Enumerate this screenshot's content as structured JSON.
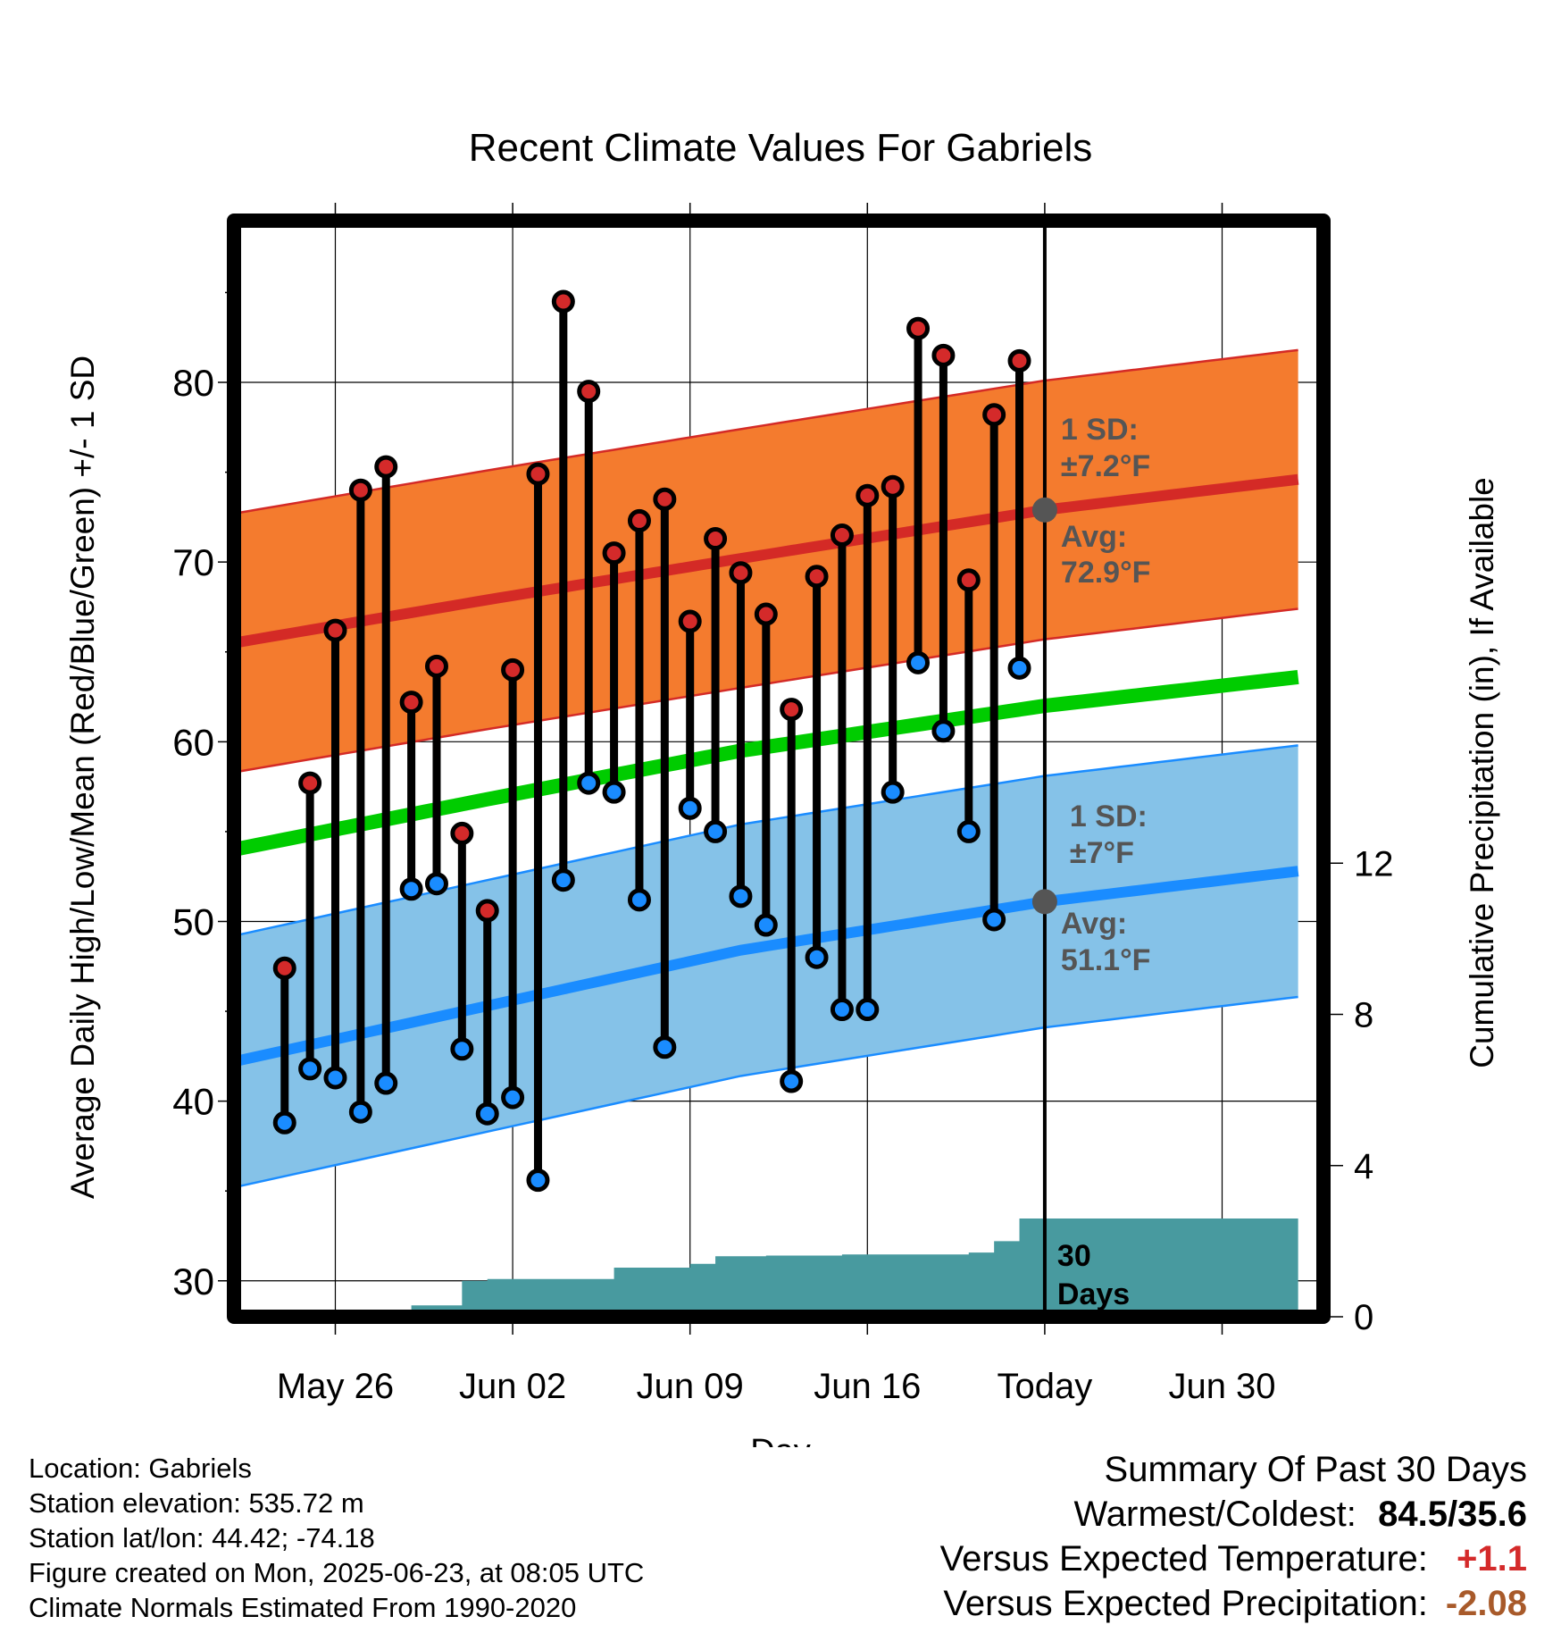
{
  "chart_data": {
    "type": "line",
    "title": "Recent Climate Values For Gabriels",
    "xlabel": "Day",
    "ylabel": "Average Daily High/Low/Mean (Red/Blue/Green) +/- 1 SD",
    "ylabel_right": "Cumulative Precipitation (in), If Available",
    "x_domain": [
      "2025-05-22",
      "2025-07-04"
    ],
    "x_tick_labels": [
      "May 26",
      "Jun 02",
      "Jun 09",
      "Jun 16",
      "Today",
      "Jun 30"
    ],
    "x_tick_dates": [
      "2025-05-26",
      "2025-06-02",
      "2025-06-09",
      "2025-06-16",
      "2025-06-23",
      "2025-06-30"
    ],
    "today": "2025-06-23",
    "ylim": [
      28,
      89
    ],
    "y_ticks": [
      30,
      40,
      50,
      60,
      70,
      80
    ],
    "ylim_right": [
      0,
      29
    ],
    "y_ticks_right": [
      0,
      4,
      8,
      12
    ],
    "grid": true,
    "daily_dates": [
      "2025-05-24",
      "2025-05-25",
      "2025-05-26",
      "2025-05-27",
      "2025-05-28",
      "2025-05-29",
      "2025-05-30",
      "2025-05-31",
      "2025-06-01",
      "2025-06-02",
      "2025-06-03",
      "2025-06-04",
      "2025-06-05",
      "2025-06-06",
      "2025-06-07",
      "2025-06-08",
      "2025-06-09",
      "2025-06-10",
      "2025-06-11",
      "2025-06-12",
      "2025-06-13",
      "2025-06-14",
      "2025-06-15",
      "2025-06-16",
      "2025-06-17",
      "2025-06-18",
      "2025-06-19",
      "2025-06-20",
      "2025-06-21",
      "2025-06-22"
    ],
    "daily_high": [
      47.4,
      57.7,
      66.2,
      74.0,
      75.3,
      62.2,
      64.2,
      54.9,
      50.6,
      64.0,
      74.9,
      84.5,
      79.5,
      70.5,
      72.3,
      73.5,
      66.7,
      71.3,
      69.4,
      67.1,
      61.8,
      69.2,
      71.5,
      73.7,
      74.2,
      83.0,
      81.5,
      69.0,
      78.2,
      81.2
    ],
    "daily_low": [
      38.8,
      41.8,
      41.3,
      39.4,
      41.0,
      51.8,
      52.1,
      42.9,
      39.3,
      40.2,
      35.6,
      52.3,
      57.7,
      57.2,
      51.2,
      43.0,
      56.3,
      55.0,
      51.4,
      49.8,
      41.1,
      48.0,
      45.1,
      45.1,
      57.2,
      64.4,
      60.6,
      55.0,
      50.1,
      64.1
    ],
    "normal_dates": [
      "2025-05-22",
      "2025-06-01",
      "2025-06-11",
      "2025-06-23",
      "2025-07-03"
    ],
    "normal_high": [
      65.5,
      67.9,
      70.2,
      72.9,
      74.6
    ],
    "normal_high_sd": 7.2,
    "normal_low": [
      42.2,
      45.3,
      48.4,
      51.1,
      52.8
    ],
    "normal_low_sd": 7,
    "normal_mean": [
      54.0,
      56.8,
      59.5,
      62.0,
      63.6
    ],
    "precip_dates": [
      "2025-05-22",
      "2025-05-27",
      "2025-05-28",
      "2025-05-29",
      "2025-05-30",
      "2025-05-31",
      "2025-06-01",
      "2025-06-03",
      "2025-06-05",
      "2025-06-06",
      "2025-06-08",
      "2025-06-09",
      "2025-06-10",
      "2025-06-12",
      "2025-06-15",
      "2025-06-19",
      "2025-06-20",
      "2025-06-21",
      "2025-06-22",
      "2025-07-03"
    ],
    "precip_cumulative": [
      0,
      0,
      0.15,
      0.3,
      0.3,
      0.95,
      1.0,
      1.0,
      1.0,
      1.3,
      1.3,
      1.4,
      1.6,
      1.62,
      1.65,
      1.65,
      1.7,
      2.0,
      2.6,
      2.6
    ],
    "annotations": {
      "high_sd_line1": "1 SD:",
      "high_sd_line2": "±7.2°F",
      "high_avg_line1": "Avg:",
      "high_avg_line2": "72.9°F",
      "low_sd_line1": "1 SD:",
      "low_sd_line2": "±7°F",
      "low_avg_line1": "Avg:",
      "low_avg_line2": "51.1°F",
      "days_line1": "30",
      "days_line2": "Days"
    },
    "colors": {
      "high_band": "#f47b2e",
      "high_line": "#d42a26",
      "low_band": "#85c2e8",
      "low_line": "#1a8cff",
      "mean_line": "#00cc00",
      "precip": "#489a9f",
      "high_dot": "#d42a2a",
      "low_dot": "#1a8cff",
      "annotation": "#555555"
    }
  },
  "info": {
    "location": "Location: Gabriels",
    "elevation": "Station elevation: 535.72 m",
    "latlon": "Station lat/lon: 44.42; -74.18",
    "created": "Figure created on Mon, 2025-06-23, at 08:05 UTC",
    "normals": "Climate Normals Estimated From 1990-2020"
  },
  "summary": {
    "title": "Summary Of Past 30 Days",
    "warm_label": "Warmest/Coldest:",
    "warm_value": "84.5/35.6",
    "temp_label": "Versus Expected Temperature:",
    "temp_value": "+1.1",
    "precip_label": "Versus Expected Precipitation:",
    "precip_value": "-2.08"
  }
}
